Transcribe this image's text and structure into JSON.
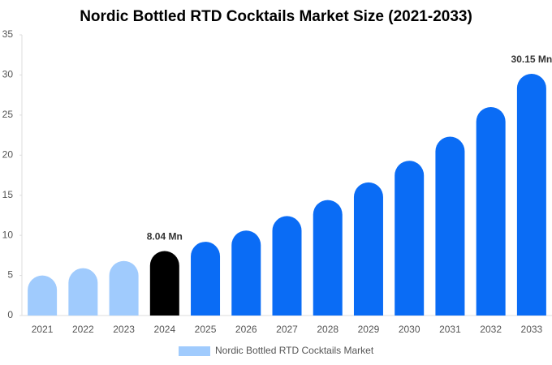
{
  "chart_data": {
    "type": "bar",
    "title": "Nordic Bottled RTD Cocktails Market Size (2021-2033)",
    "categories": [
      "2021",
      "2022",
      "2023",
      "2024",
      "2025",
      "2026",
      "2027",
      "2028",
      "2029",
      "2030",
      "2031",
      "2032",
      "2033"
    ],
    "series": [
      {
        "name": "Nordic Bottled RTD Cocktails Market",
        "color": "#a0cbfd",
        "colors": [
          "#a0cbfd",
          "#a0cbfd",
          "#a0cbfd",
          "#000000",
          "#0a6cf5",
          "#0a6cf5",
          "#0a6cf5",
          "#0a6cf5",
          "#0a6cf5",
          "#0a6cf5",
          "#0a6cf5",
          "#0a6cf5",
          "#0a6cf5"
        ],
        "values": [
          5.0,
          5.9,
          6.8,
          8.04,
          9.2,
          10.6,
          12.4,
          14.4,
          16.6,
          19.3,
          22.3,
          26.0,
          30.15
        ],
        "value_labels": [
          null,
          null,
          null,
          "8.04 Mn",
          null,
          null,
          null,
          null,
          null,
          null,
          null,
          null,
          "30.15 Mn"
        ]
      }
    ],
    "ylim": [
      0,
      35
    ],
    "yticks": [
      0,
      5,
      10,
      15,
      20,
      25,
      30,
      35
    ],
    "legend": "bottom"
  }
}
